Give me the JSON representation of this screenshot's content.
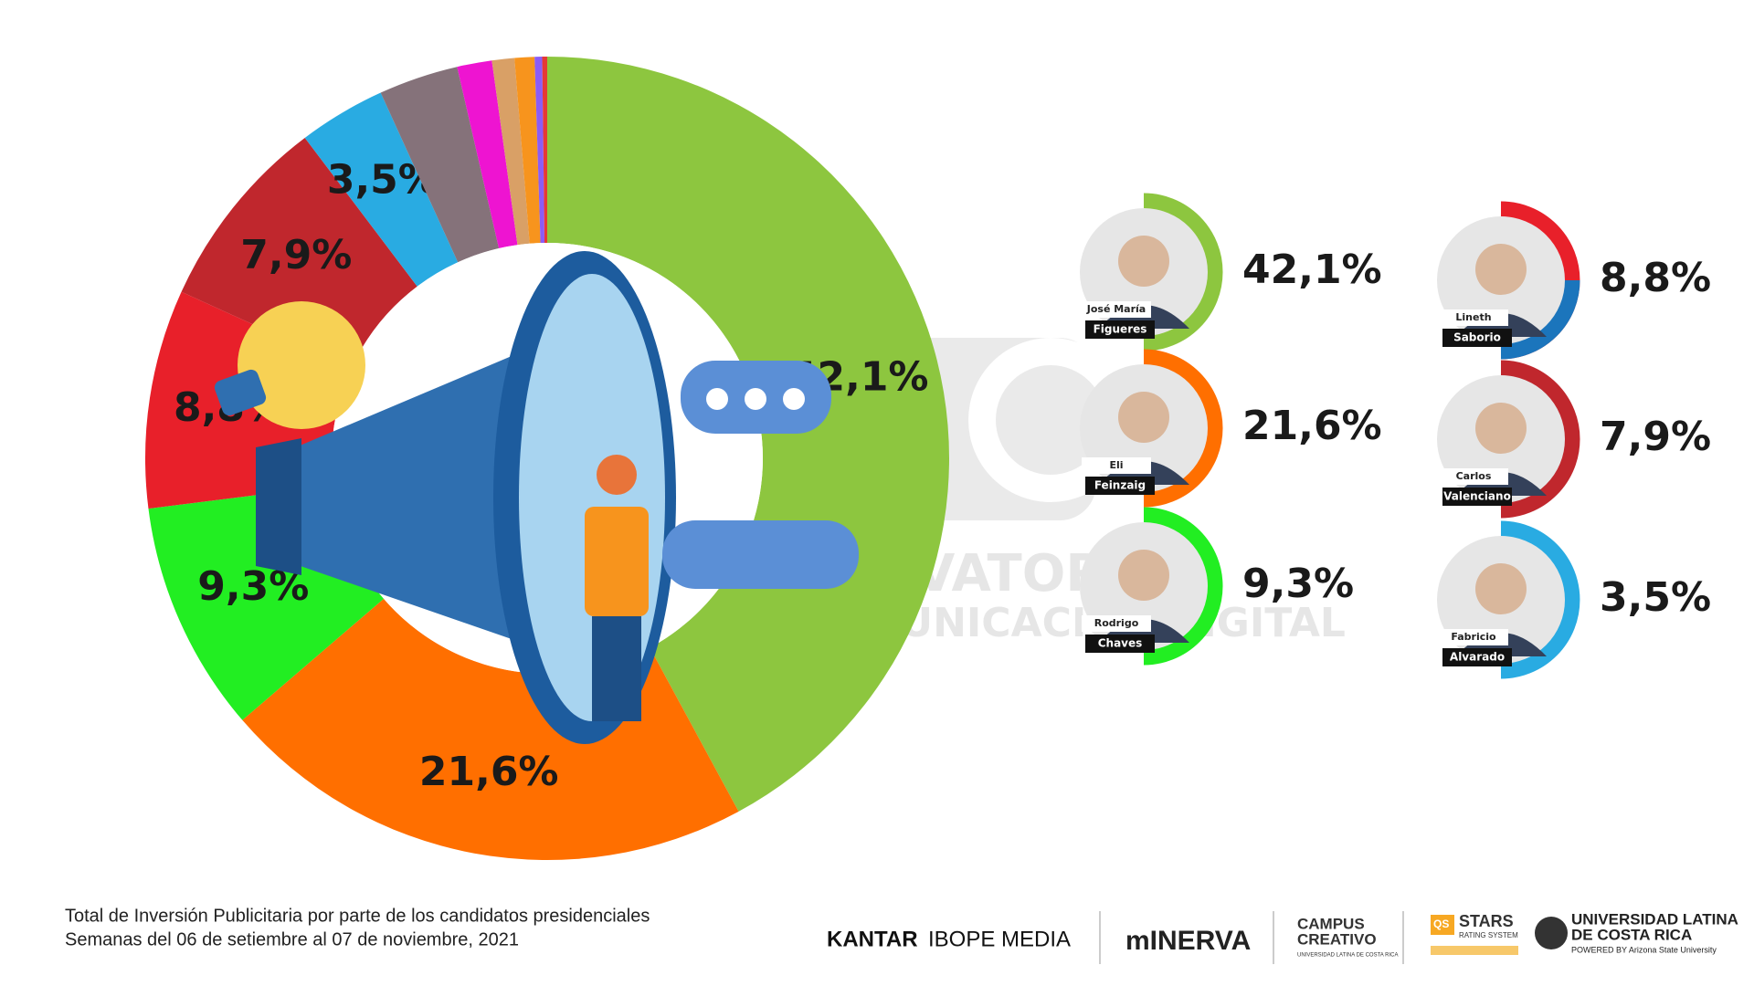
{
  "chart_data": {
    "type": "pie",
    "donut": true,
    "categories": [
      "Figueres",
      "Feinzaig",
      "Chaves",
      "Saborio",
      "Valenciano",
      "Alvarado",
      null,
      null,
      null,
      null,
      null,
      null
    ],
    "first_names": [
      "José María",
      "Eli",
      "Rodrigo",
      "Lineth",
      "Carlos",
      "Fabricio",
      null,
      null,
      null,
      null,
      null,
      null
    ],
    "values": [
      42.1,
      21.6,
      9.3,
      8.8,
      7.9,
      3.5,
      3.2,
      1.4,
      0.9,
      0.8,
      0.3,
      0.2
    ],
    "value_labels": [
      "42,1%",
      "21,6%",
      "9,3%",
      "8,8%",
      "7,9%",
      "3,5%",
      null,
      null,
      null,
      null,
      null,
      null
    ],
    "colors": [
      "#8dc63f",
      "#ff6f00",
      "#22ee22",
      "#e8202a",
      "#c0272d",
      "#29abe2",
      "#85727a",
      "#ee14d1",
      "#d9a066",
      "#f7941d",
      "#8b5cf6",
      "#e53935"
    ]
  },
  "notes": [
    "Total de Inversión Publicitaria por parte de los candidatos presidenciales",
    "Semanas del 06 de setiembre al 07 de noviembre, 2021"
  ],
  "watermark": [
    "OBSERVATORIO",
    "DE COMUNICACIÓN DIGITAL"
  ],
  "logos": {
    "kantar": "KANTAR",
    "ibope": "IBOPE MEDIA",
    "minerva": "mINERVA",
    "campus": [
      "CAMPUS",
      "CREATIVO"
    ],
    "campus_sub": "UNIVERSIDAD LATINA DE COSTA RICA",
    "qs": "QS",
    "stars": "STARS",
    "stars_sub": "RATING SYSTEM",
    "ulatina": [
      "UNIVERSIDAD LATINA",
      "DE COSTA RICA"
    ],
    "powered": "POWERED BY Arizona State University"
  }
}
